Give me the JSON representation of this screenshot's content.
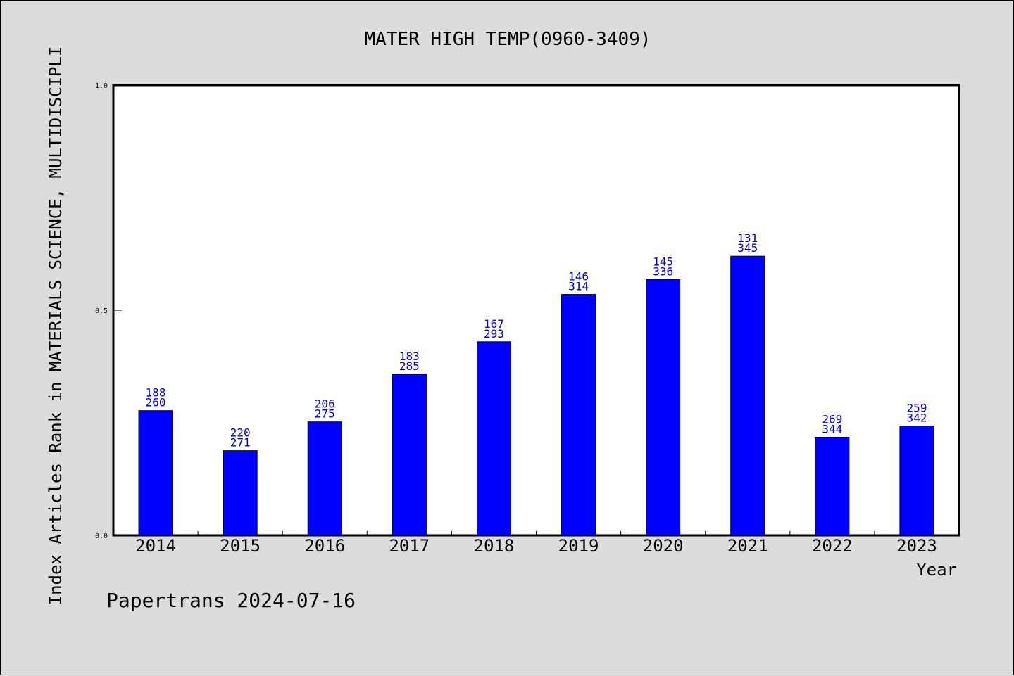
{
  "chart_data": {
    "type": "bar",
    "title": "MATER HIGH TEMP(0960-3409)",
    "xlabel": "Year",
    "ylabel": "Index Articles Rank in MATERIALS SCIENCE, MULTIDISCIPLI",
    "ylim": [
      0,
      1
    ],
    "yticks": [
      "0.0",
      "0.5",
      "1.0"
    ],
    "grid": false,
    "categories": [
      "2014",
      "2015",
      "2016",
      "2017",
      "2018",
      "2019",
      "2020",
      "2021",
      "2022",
      "2023"
    ],
    "values": [
      0.277,
      0.188,
      0.252,
      0.358,
      0.43,
      0.535,
      0.568,
      0.62,
      0.218,
      0.243
    ],
    "rank": [
      "188",
      "220",
      "206",
      "183",
      "167",
      "146",
      "145",
      "131",
      "269",
      "259"
    ],
    "total": [
      "260",
      "271",
      "275",
      "285",
      "293",
      "314",
      "336",
      "345",
      "344",
      "342"
    ],
    "bar_color": "#0000ff",
    "label_color": "#0000cc"
  },
  "footer": {
    "credit": "Papertrans 2024-07-16"
  },
  "colors": {
    "background": "#dcdcdc",
    "plot_background": "#ffffff"
  }
}
